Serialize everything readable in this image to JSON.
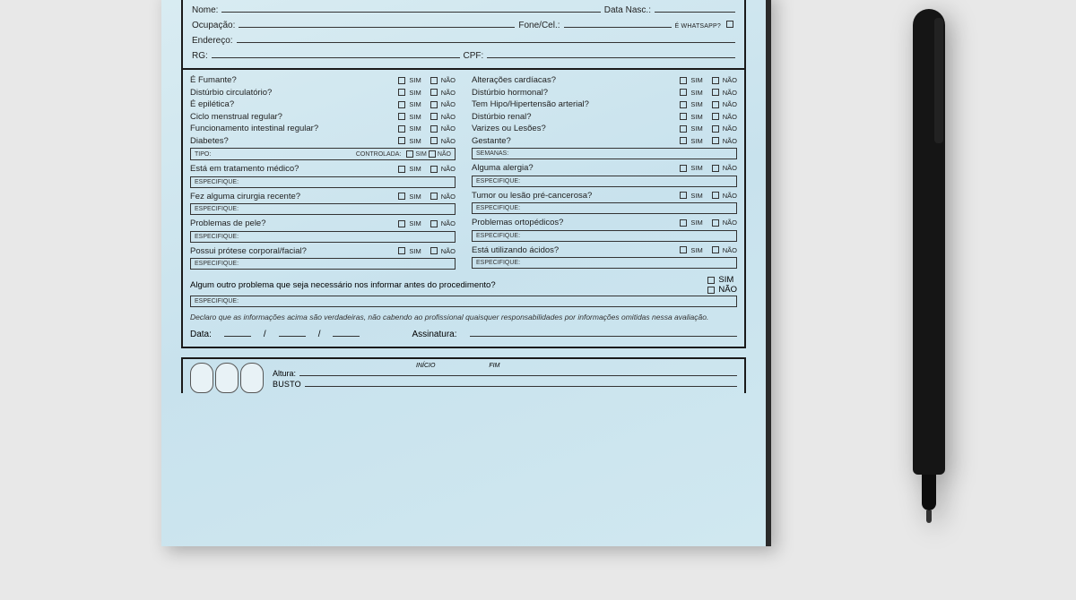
{
  "yn": {
    "sim": "SIM",
    "nao": "NÃO"
  },
  "personal": {
    "nome": "Nome:",
    "dataNasc": "Data Nasc.:",
    "ocupacao": "Ocupação:",
    "fone": "Fone/Cel.:",
    "whats": "É WHATSAPP?",
    "endereco": "Endereço:",
    "rg": "RG:",
    "cpf": "CPF:"
  },
  "left": [
    {
      "q": "É Fumante?"
    },
    {
      "q": "Distúrbio circulatório?"
    },
    {
      "q": "É epilética?"
    },
    {
      "q": "Ciclo menstrual regular?"
    },
    {
      "q": "Funcionamento intestinal regular?"
    },
    {
      "q": "Diabetes?",
      "sub": "TIPO:",
      "sub2": "CONTROLADA:"
    },
    {
      "q": "Está em tratamento médico?",
      "spec": "ESPECIFIQUE:"
    },
    {
      "q": "Fez alguma cirurgia recente?",
      "spec": "ESPECIFIQUE:"
    },
    {
      "q": "Problemas de pele?",
      "spec": "ESPECIFIQUE:"
    },
    {
      "q": "Possui prótese corporal/facial?",
      "spec": "ESPECIFIQUE:"
    }
  ],
  "right": [
    {
      "q": "Alterações cardíacas?"
    },
    {
      "q": "Distúrbio hormonal?"
    },
    {
      "q": "Tem Hipo/Hipertensão arterial?"
    },
    {
      "q": "Distúrbio renal?"
    },
    {
      "q": "Varizes ou Lesões?"
    },
    {
      "q": "Gestante?",
      "sub": "SEMANAS:"
    },
    {
      "q": "Alguma alergia?",
      "spec": "ESPECIFIQUE:"
    },
    {
      "q": "Tumor ou lesão pré-cancerosa?",
      "spec": "ESPECIFIQUE:"
    },
    {
      "q": "Problemas ortopédicos?",
      "spec": "ESPECIFIQUE:"
    },
    {
      "q": "Está utilizando ácidos?",
      "spec": "ESPECIFIQUE:"
    }
  ],
  "fullQ": "Algum outro problema que seja necessário nos informar antes do procedimento?",
  "fullSpec": "ESPECIFIQUE:",
  "declaration": "Declaro que as informações acima são verdadeiras, não cabendo ao profissional quaisquer responsabilidades por informações omitidas nessa avaliação.",
  "sig": {
    "data": "Data:",
    "ass": "Assinatura:"
  },
  "meas": {
    "altura": "Altura:",
    "busto": "BUSTO",
    "inicio": "INÍCIO",
    "fim": "FIM"
  },
  "style": {
    "paper_bg": "#d9ecf2",
    "border": "#1a1a1a",
    "text": "#222222"
  }
}
